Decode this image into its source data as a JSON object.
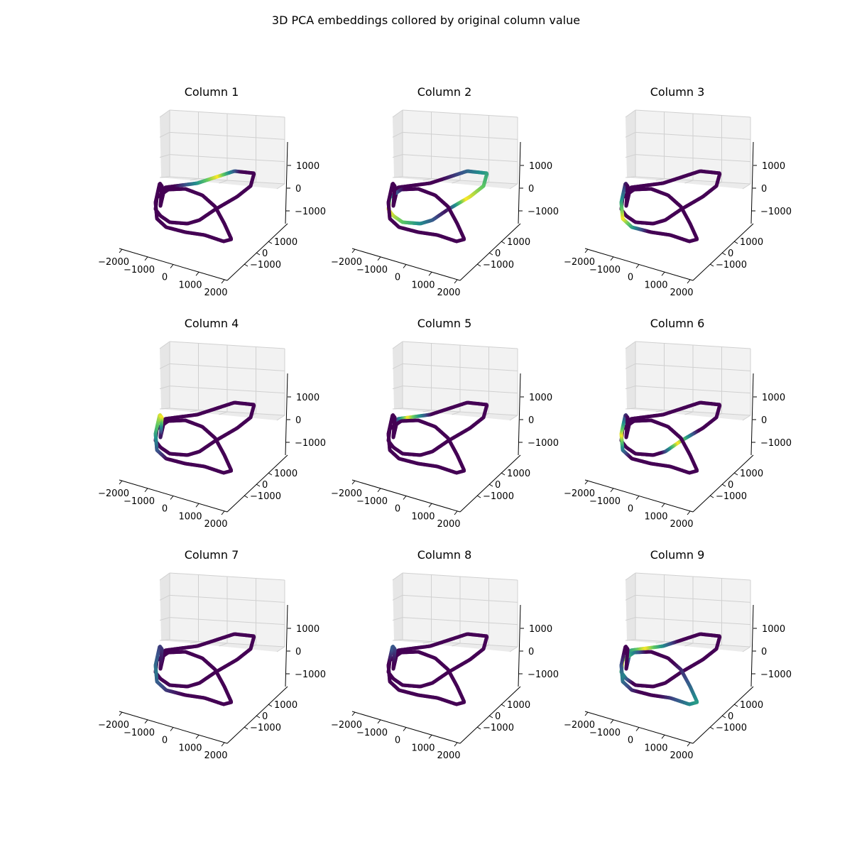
{
  "figure": {
    "title": "3D PCA embeddings collored by original column value"
  },
  "chart_data": {
    "type": "scatter",
    "projection": "3d",
    "colormap": "viridis",
    "colormap_colors": [
      "#440154",
      "#3b528b",
      "#21918c",
      "#5ec962",
      "#fde725"
    ],
    "pane_color": "#f2f2f2",
    "grid": true,
    "x_ticks": [
      "−2000",
      "−1000",
      "0",
      "1000",
      "2000"
    ],
    "y_ticks": [
      "1000",
      "0",
      "−1000"
    ],
    "z_ticks": [
      "1000",
      "0",
      "−1000"
    ],
    "xlim": [
      -2000,
      2000
    ],
    "ylim": [
      -1000,
      1000
    ],
    "zlim": [
      -1000,
      1000
    ],
    "panels": [
      {
        "title": "Column 1",
        "highlights": [
          {
            "start": 0.06,
            "end": 0.2,
            "peak": 0.15
          }
        ]
      },
      {
        "title": "Column 2",
        "highlights": [
          {
            "start": 0.13,
            "end": 0.35,
            "peak": 0.3
          },
          {
            "start": 0.34,
            "end": 0.54,
            "peak": 0.48
          }
        ]
      },
      {
        "title": "Column 3",
        "highlights": [
          {
            "start": 0.82,
            "end": 0.96,
            "peak": 0.88
          }
        ]
      },
      {
        "title": "Column 4",
        "highlights": [
          {
            "start": 0.85,
            "end": 1.0,
            "peak": 0.96
          }
        ]
      },
      {
        "title": "Column 5",
        "highlights": [
          {
            "start": 0.03,
            "end": 0.11,
            "peak": 0.06
          }
        ]
      },
      {
        "title": "Column 6",
        "highlights": [
          {
            "start": 0.3,
            "end": 0.39,
            "peak": 0.35
          },
          {
            "start": 0.86,
            "end": 0.96,
            "peak": 0.91
          }
        ]
      },
      {
        "title": "Column 7",
        "highlights": [
          {
            "start": 0.82,
            "end": 1.0,
            "peak": 0.9,
            "max": 0.4
          }
        ]
      },
      {
        "title": "Column 8",
        "highlights": [
          {
            "start": 0.92,
            "end": 0.99,
            "peak": 0.95,
            "max": 0.3
          }
        ]
      },
      {
        "title": "Column 9",
        "highlights": [
          {
            "start": 0.0,
            "end": 0.14,
            "peak": 0.07
          },
          {
            "start": 0.62,
            "end": 0.8,
            "peak": 0.72,
            "max": 0.55
          },
          {
            "start": 0.84,
            "end": 0.94,
            "peak": 0.89,
            "max": 0.45
          },
          {
            "start": 0.45,
            "end": 0.56,
            "peak": 0.5
          }
        ]
      }
    ]
  }
}
